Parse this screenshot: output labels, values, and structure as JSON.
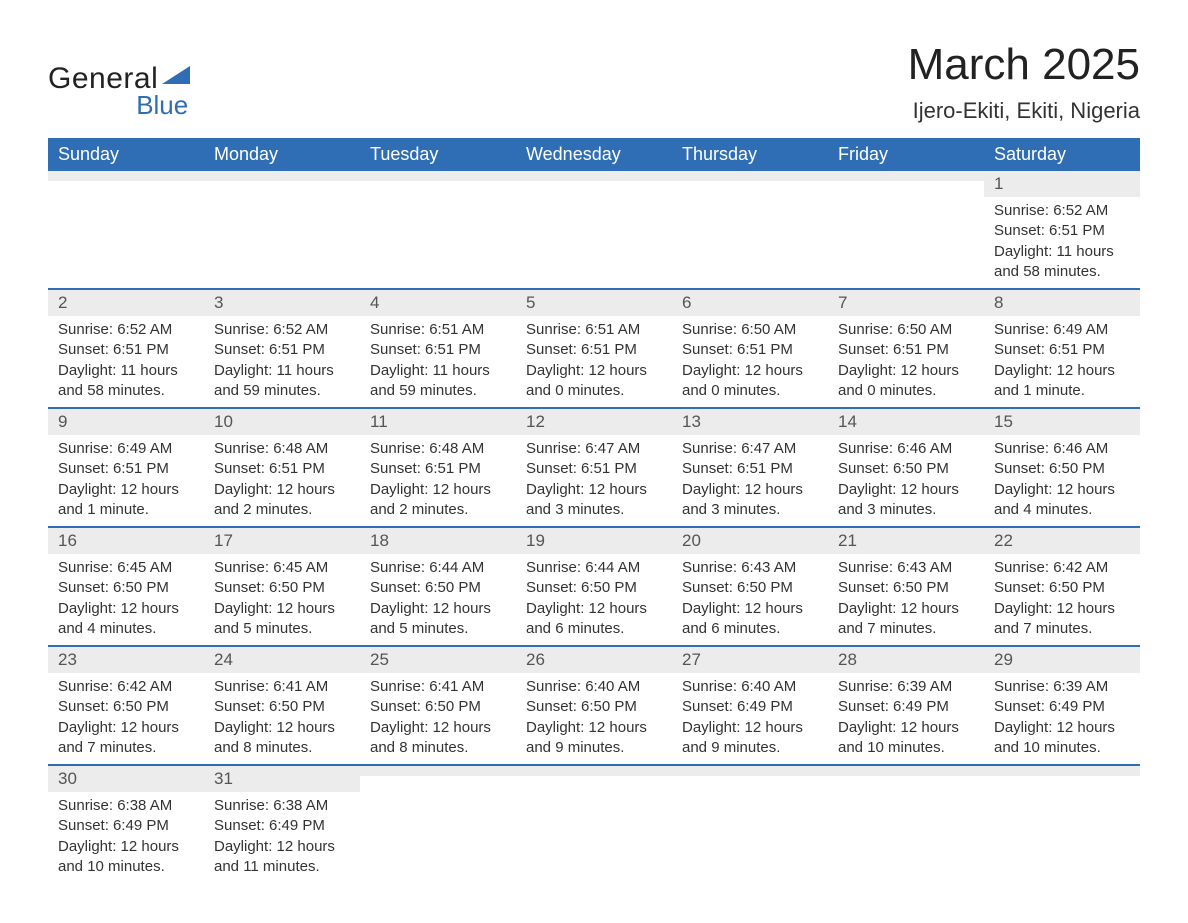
{
  "logo": {
    "word1": "General",
    "word2": "Blue",
    "shape_color": "#2f6eb5"
  },
  "title": "March 2025",
  "location": "Ijero-Ekiti, Ekiti, Nigeria",
  "header_bg": "#2f6eb5",
  "header_fg": "#ffffff",
  "daynum_bg": "#ececec",
  "row_border": "#2f6eb5",
  "text_color": "#333333",
  "day_headers": [
    "Sunday",
    "Monday",
    "Tuesday",
    "Wednesday",
    "Thursday",
    "Friday",
    "Saturday"
  ],
  "weeks": [
    [
      {
        "n": "",
        "lines": []
      },
      {
        "n": "",
        "lines": []
      },
      {
        "n": "",
        "lines": []
      },
      {
        "n": "",
        "lines": []
      },
      {
        "n": "",
        "lines": []
      },
      {
        "n": "",
        "lines": []
      },
      {
        "n": "1",
        "lines": [
          "Sunrise: 6:52 AM",
          "Sunset: 6:51 PM",
          "Daylight: 11 hours and 58 minutes."
        ]
      }
    ],
    [
      {
        "n": "2",
        "lines": [
          "Sunrise: 6:52 AM",
          "Sunset: 6:51 PM",
          "Daylight: 11 hours and 58 minutes."
        ]
      },
      {
        "n": "3",
        "lines": [
          "Sunrise: 6:52 AM",
          "Sunset: 6:51 PM",
          "Daylight: 11 hours and 59 minutes."
        ]
      },
      {
        "n": "4",
        "lines": [
          "Sunrise: 6:51 AM",
          "Sunset: 6:51 PM",
          "Daylight: 11 hours and 59 minutes."
        ]
      },
      {
        "n": "5",
        "lines": [
          "Sunrise: 6:51 AM",
          "Sunset: 6:51 PM",
          "Daylight: 12 hours and 0 minutes."
        ]
      },
      {
        "n": "6",
        "lines": [
          "Sunrise: 6:50 AM",
          "Sunset: 6:51 PM",
          "Daylight: 12 hours and 0 minutes."
        ]
      },
      {
        "n": "7",
        "lines": [
          "Sunrise: 6:50 AM",
          "Sunset: 6:51 PM",
          "Daylight: 12 hours and 0 minutes."
        ]
      },
      {
        "n": "8",
        "lines": [
          "Sunrise: 6:49 AM",
          "Sunset: 6:51 PM",
          "Daylight: 12 hours and 1 minute."
        ]
      }
    ],
    [
      {
        "n": "9",
        "lines": [
          "Sunrise: 6:49 AM",
          "Sunset: 6:51 PM",
          "Daylight: 12 hours and 1 minute."
        ]
      },
      {
        "n": "10",
        "lines": [
          "Sunrise: 6:48 AM",
          "Sunset: 6:51 PM",
          "Daylight: 12 hours and 2 minutes."
        ]
      },
      {
        "n": "11",
        "lines": [
          "Sunrise: 6:48 AM",
          "Sunset: 6:51 PM",
          "Daylight: 12 hours and 2 minutes."
        ]
      },
      {
        "n": "12",
        "lines": [
          "Sunrise: 6:47 AM",
          "Sunset: 6:51 PM",
          "Daylight: 12 hours and 3 minutes."
        ]
      },
      {
        "n": "13",
        "lines": [
          "Sunrise: 6:47 AM",
          "Sunset: 6:51 PM",
          "Daylight: 12 hours and 3 minutes."
        ]
      },
      {
        "n": "14",
        "lines": [
          "Sunrise: 6:46 AM",
          "Sunset: 6:50 PM",
          "Daylight: 12 hours and 3 minutes."
        ]
      },
      {
        "n": "15",
        "lines": [
          "Sunrise: 6:46 AM",
          "Sunset: 6:50 PM",
          "Daylight: 12 hours and 4 minutes."
        ]
      }
    ],
    [
      {
        "n": "16",
        "lines": [
          "Sunrise: 6:45 AM",
          "Sunset: 6:50 PM",
          "Daylight: 12 hours and 4 minutes."
        ]
      },
      {
        "n": "17",
        "lines": [
          "Sunrise: 6:45 AM",
          "Sunset: 6:50 PM",
          "Daylight: 12 hours and 5 minutes."
        ]
      },
      {
        "n": "18",
        "lines": [
          "Sunrise: 6:44 AM",
          "Sunset: 6:50 PM",
          "Daylight: 12 hours and 5 minutes."
        ]
      },
      {
        "n": "19",
        "lines": [
          "Sunrise: 6:44 AM",
          "Sunset: 6:50 PM",
          "Daylight: 12 hours and 6 minutes."
        ]
      },
      {
        "n": "20",
        "lines": [
          "Sunrise: 6:43 AM",
          "Sunset: 6:50 PM",
          "Daylight: 12 hours and 6 minutes."
        ]
      },
      {
        "n": "21",
        "lines": [
          "Sunrise: 6:43 AM",
          "Sunset: 6:50 PM",
          "Daylight: 12 hours and 7 minutes."
        ]
      },
      {
        "n": "22",
        "lines": [
          "Sunrise: 6:42 AM",
          "Sunset: 6:50 PM",
          "Daylight: 12 hours and 7 minutes."
        ]
      }
    ],
    [
      {
        "n": "23",
        "lines": [
          "Sunrise: 6:42 AM",
          "Sunset: 6:50 PM",
          "Daylight: 12 hours and 7 minutes."
        ]
      },
      {
        "n": "24",
        "lines": [
          "Sunrise: 6:41 AM",
          "Sunset: 6:50 PM",
          "Daylight: 12 hours and 8 minutes."
        ]
      },
      {
        "n": "25",
        "lines": [
          "Sunrise: 6:41 AM",
          "Sunset: 6:50 PM",
          "Daylight: 12 hours and 8 minutes."
        ]
      },
      {
        "n": "26",
        "lines": [
          "Sunrise: 6:40 AM",
          "Sunset: 6:50 PM",
          "Daylight: 12 hours and 9 minutes."
        ]
      },
      {
        "n": "27",
        "lines": [
          "Sunrise: 6:40 AM",
          "Sunset: 6:49 PM",
          "Daylight: 12 hours and 9 minutes."
        ]
      },
      {
        "n": "28",
        "lines": [
          "Sunrise: 6:39 AM",
          "Sunset: 6:49 PM",
          "Daylight: 12 hours and 10 minutes."
        ]
      },
      {
        "n": "29",
        "lines": [
          "Sunrise: 6:39 AM",
          "Sunset: 6:49 PM",
          "Daylight: 12 hours and 10 minutes."
        ]
      }
    ],
    [
      {
        "n": "30",
        "lines": [
          "Sunrise: 6:38 AM",
          "Sunset: 6:49 PM",
          "Daylight: 12 hours and 10 minutes."
        ]
      },
      {
        "n": "31",
        "lines": [
          "Sunrise: 6:38 AM",
          "Sunset: 6:49 PM",
          "Daylight: 12 hours and 11 minutes."
        ]
      },
      {
        "n": "",
        "lines": []
      },
      {
        "n": "",
        "lines": []
      },
      {
        "n": "",
        "lines": []
      },
      {
        "n": "",
        "lines": []
      },
      {
        "n": "",
        "lines": []
      }
    ]
  ]
}
